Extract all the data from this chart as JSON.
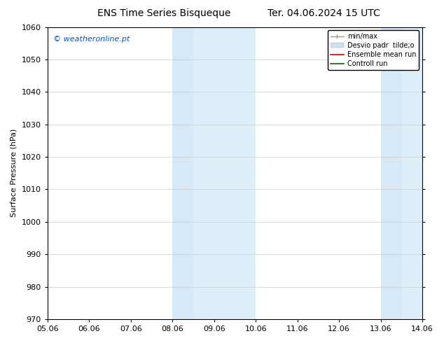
{
  "title_left": "ENS Time Series Bisqueque",
  "title_right": "Ter. 04.06.2024 15 UTC",
  "ylabel": "Surface Pressure (hPa)",
  "xlim_min": 0,
  "xlim_max": 9,
  "ylim": [
    970,
    1060
  ],
  "yticks": [
    970,
    980,
    990,
    1000,
    1010,
    1020,
    1030,
    1040,
    1050,
    1060
  ],
  "xtick_labels": [
    "05.06",
    "06.06",
    "07.06",
    "08.06",
    "09.06",
    "10.06",
    "11.06",
    "12.06",
    "13.06",
    "14.06"
  ],
  "watermark": "© weatheronline.pt",
  "watermark_color": "#0055cc",
  "background_color": "#ffffff",
  "plot_bg_color": "#ffffff",
  "shaded_regions": [
    {
      "xstart": 3,
      "xend": 3.5,
      "color": "#d6e9f8"
    },
    {
      "xstart": 3.5,
      "xend": 5,
      "color": "#ddeef8"
    },
    {
      "xstart": 8,
      "xend": 8.5,
      "color": "#d6e9f8"
    },
    {
      "xstart": 8.5,
      "xend": 9,
      "color": "#ddeef8"
    }
  ],
  "title_fontsize": 10,
  "tick_fontsize": 8,
  "ylabel_fontsize": 8,
  "grid_color": "#cccccc",
  "border_color": "#000000",
  "legend_fontsize": 7
}
